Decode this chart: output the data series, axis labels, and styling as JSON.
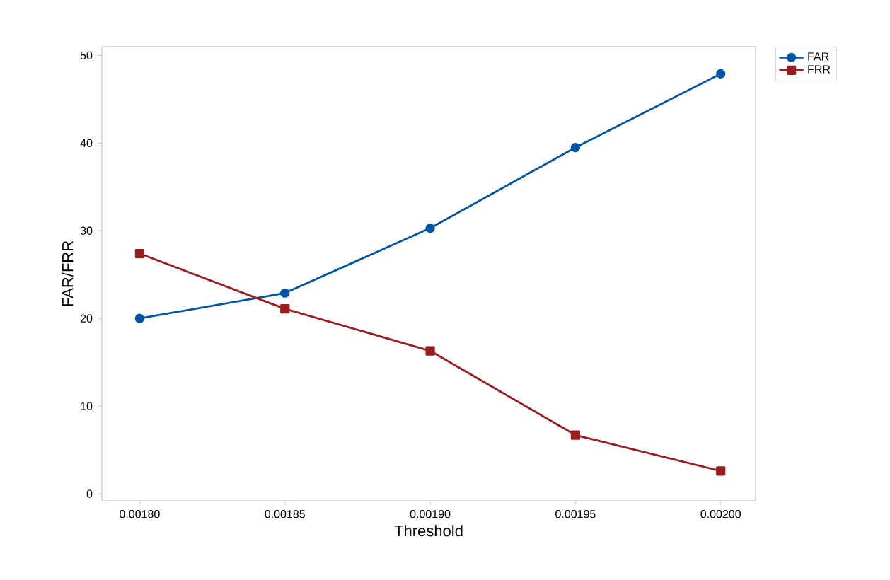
{
  "chart_data": {
    "type": "line",
    "xlabel": "Threshold",
    "ylabel": "FAR/FRR",
    "x": [
      0.0018,
      0.00185,
      0.0019,
      0.00195,
      0.002
    ],
    "series": [
      {
        "name": "FAR",
        "color": "#0054a6",
        "marker": "circle",
        "values": [
          20,
          22.9,
          30.3,
          39.5,
          47.9
        ]
      },
      {
        "name": "FRR",
        "color": "#9b1b1e",
        "marker": "square",
        "values": [
          27.4,
          21.1,
          16.3,
          6.7,
          2.6
        ]
      }
    ],
    "xlim": [
      0.001787,
      0.002012
    ],
    "ylim": [
      -0.8,
      51
    ],
    "xticks": [
      {
        "value": 0.0018,
        "label": "0.00180"
      },
      {
        "value": 0.00185,
        "label": "0.00185"
      },
      {
        "value": 0.0019,
        "label": "0.00190"
      },
      {
        "value": 0.00195,
        "label": "0.00195"
      },
      {
        "value": 0.002,
        "label": "0.00200"
      }
    ],
    "yticks": [
      0,
      10,
      20,
      30,
      40,
      50
    ],
    "legend": "top right",
    "line_style": "solid"
  }
}
